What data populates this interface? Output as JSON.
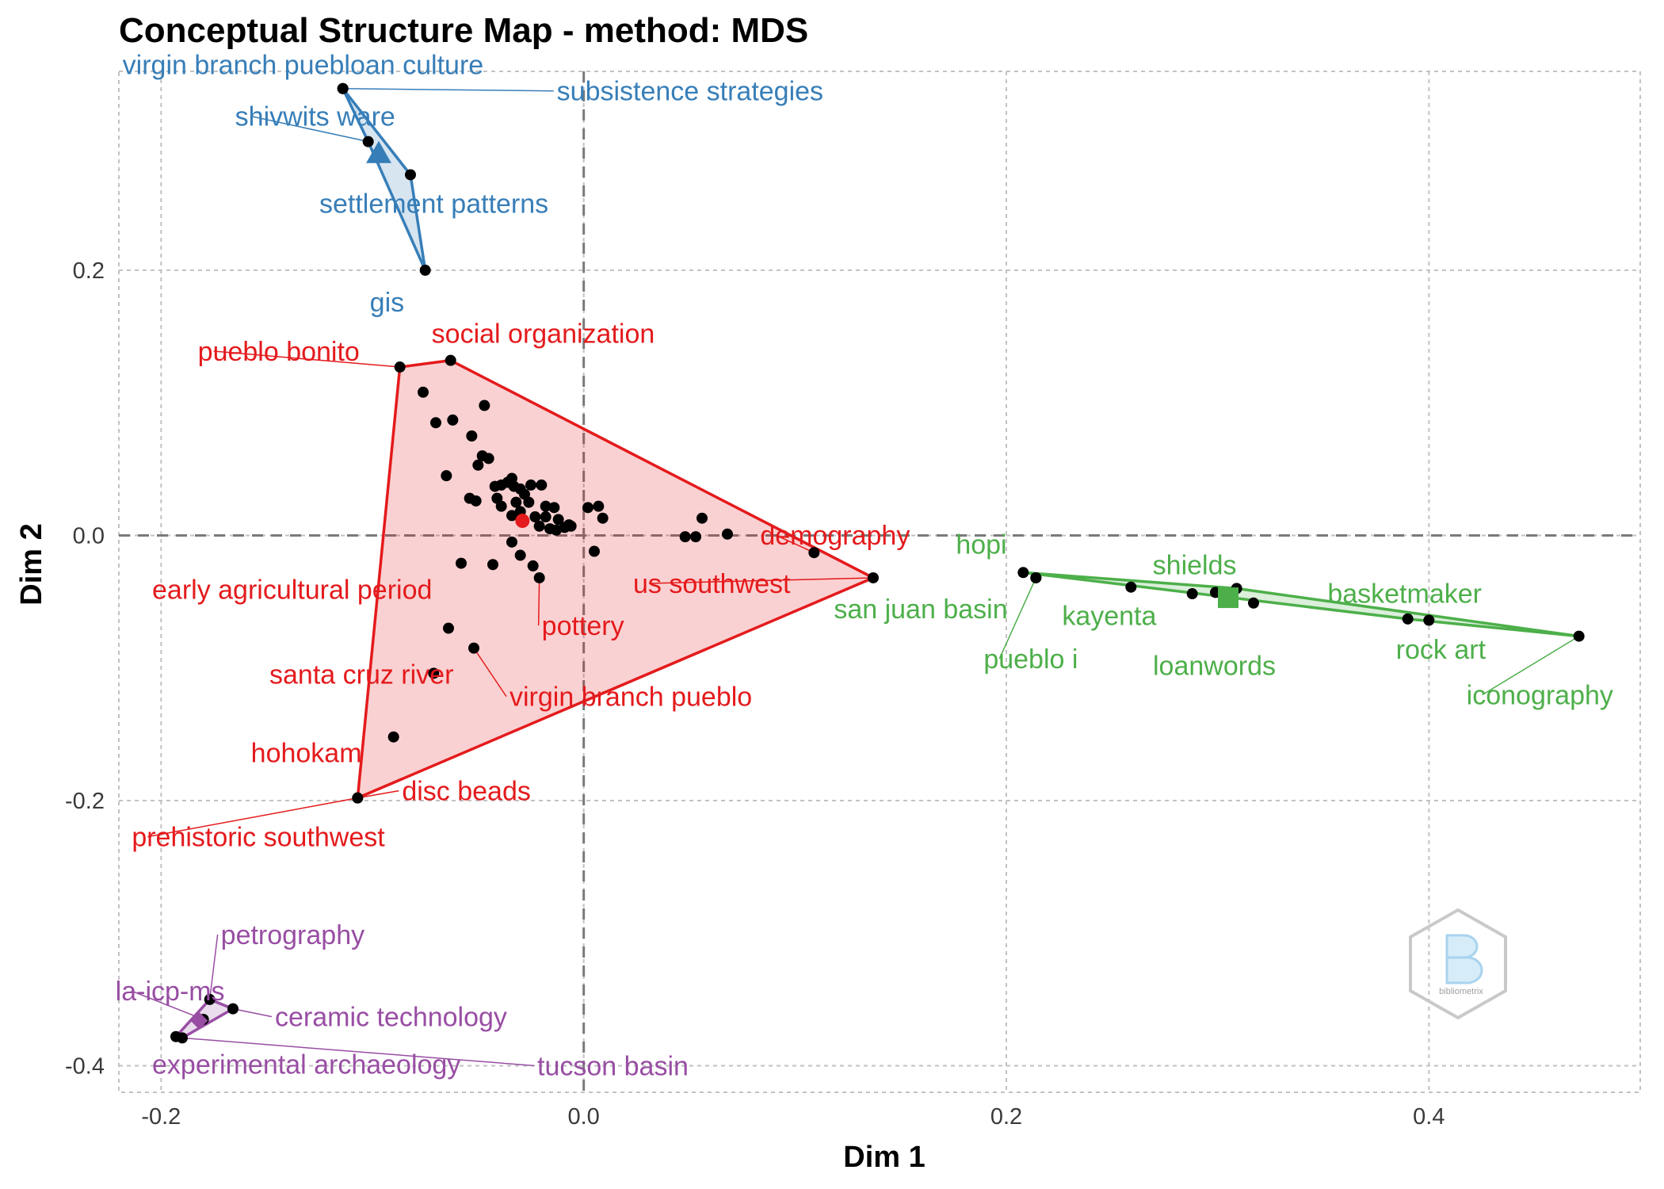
{
  "chart_data": {
    "type": "scatter",
    "title": "Conceptual Structure Map - method: MDS",
    "xlabel": "Dim 1",
    "ylabel": "Dim 2",
    "xlim": [
      -0.22,
      0.5
    ],
    "ylim": [
      -0.42,
      0.35
    ],
    "x_ticks": [
      -0.2,
      0.0,
      0.2,
      0.4
    ],
    "y_ticks": [
      0.2,
      0.0,
      -0.2,
      -0.4
    ],
    "x_tick_labels": [
      "-0.2",
      "0.0",
      "0.2",
      "0.4"
    ],
    "y_tick_labels": [
      "0.2",
      "0.0",
      "-0.2",
      "-0.4"
    ],
    "grid": true,
    "logo": "bibliometrix",
    "clusters": [
      {
        "color": "#377EB8",
        "fill": "rgba(55,126,184,0.2)",
        "centroid": [
          -0.097,
          0.288
        ],
        "centroid_shape": "triangle",
        "hull": [
          [
            -0.114,
            0.337
          ],
          [
            -0.082,
            0.272
          ],
          [
            -0.075,
            0.2
          ],
          [
            -0.102,
            0.297
          ]
        ],
        "points": [
          {
            "label": "virgin branch puebloan culture",
            "x": -0.114,
            "y": 0.337
          },
          {
            "label": "subsistence strategies",
            "x": -0.114,
            "y": 0.337
          },
          {
            "label": "shivwits ware",
            "x": -0.102,
            "y": 0.297
          },
          {
            "label": "settlement patterns",
            "x": -0.082,
            "y": 0.272
          },
          {
            "label": "gis",
            "x": -0.075,
            "y": 0.2
          }
        ]
      },
      {
        "color": "#E41A1C",
        "fill": "rgba(228,26,28,0.2)",
        "centroid": [
          -0.029,
          0.011
        ],
        "centroid_shape": "circle",
        "hull": [
          [
            -0.087,
            0.127
          ],
          [
            -0.063,
            0.132
          ],
          [
            0.137,
            -0.032
          ],
          [
            -0.107,
            -0.198
          ]
        ],
        "points": [
          {
            "label": "pueblo bonito",
            "x": -0.087,
            "y": 0.127
          },
          {
            "label": "social organization",
            "x": -0.063,
            "y": 0.132
          },
          {
            "label": "demography",
            "x": 0.109,
            "y": -0.013
          },
          {
            "label": "us southwest",
            "x": 0.137,
            "y": -0.032
          },
          {
            "label": "early agricultural period",
            "x": -0.043,
            "y": -0.022
          },
          {
            "label": "pottery",
            "x": -0.021,
            "y": -0.032
          },
          {
            "label": "virgin branch pueblo",
            "x": -0.052,
            "y": -0.085
          },
          {
            "label": "santa cruz river",
            "x": -0.064,
            "y": -0.07
          },
          {
            "label": "hohokam",
            "x": -0.09,
            "y": -0.152
          },
          {
            "label": "disc beads",
            "x": -0.107,
            "y": -0.198
          },
          {
            "label": "prehistoric southwest",
            "x": -0.107,
            "y": -0.198
          }
        ],
        "extra_points": [
          [
            -0.076,
            0.108
          ],
          [
            -0.07,
            0.085
          ],
          [
            -0.062,
            0.087
          ],
          [
            -0.047,
            0.098
          ],
          [
            -0.053,
            0.075
          ],
          [
            -0.065,
            0.045
          ],
          [
            -0.048,
            0.06
          ],
          [
            -0.05,
            0.053
          ],
          [
            -0.045,
            0.058
          ],
          [
            -0.042,
            0.037
          ],
          [
            -0.039,
            0.038
          ],
          [
            -0.036,
            0.04
          ],
          [
            -0.034,
            0.043
          ],
          [
            -0.033,
            0.037
          ],
          [
            -0.03,
            0.035
          ],
          [
            -0.025,
            0.038
          ],
          [
            -0.02,
            0.038
          ],
          [
            -0.028,
            0.031
          ],
          [
            -0.041,
            0.028
          ],
          [
            -0.039,
            0.022
          ],
          [
            -0.032,
            0.025
          ],
          [
            -0.026,
            0.025
          ],
          [
            -0.018,
            0.022
          ],
          [
            -0.014,
            0.021
          ],
          [
            -0.034,
            0.015
          ],
          [
            -0.03,
            0.018
          ],
          [
            -0.023,
            0.014
          ],
          [
            -0.018,
            0.014
          ],
          [
            -0.012,
            0.012
          ],
          [
            -0.007,
            0.008
          ],
          [
            -0.021,
            0.007
          ],
          [
            -0.016,
            0.005
          ],
          [
            -0.009,
            0.006
          ],
          [
            -0.006,
            0.007
          ],
          [
            -0.013,
            0.004
          ],
          [
            -0.051,
            0.026
          ],
          [
            -0.054,
            0.028
          ],
          [
            0.002,
            0.021
          ],
          [
            0.007,
            0.022
          ],
          [
            0.009,
            0.013
          ],
          [
            -0.034,
            -0.005
          ],
          [
            -0.03,
            -0.015
          ],
          [
            0.005,
            -0.012
          ],
          [
            0.048,
            -0.001
          ],
          [
            0.053,
            -0.001
          ],
          [
            0.056,
            0.013
          ],
          [
            0.068,
            0.001
          ],
          [
            -0.058,
            -0.021
          ],
          [
            -0.024,
            -0.023
          ],
          [
            -0.071,
            -0.104
          ]
        ]
      },
      {
        "color": "#4DAF4A",
        "fill": "rgba(77,175,74,0.2)",
        "centroid": [
          0.305,
          -0.047
        ],
        "centroid_shape": "square",
        "hull": [
          [
            0.208,
            -0.028
          ],
          [
            0.309,
            -0.04
          ],
          [
            0.471,
            -0.076
          ],
          [
            0.39,
            -0.063
          ]
        ],
        "points": [
          {
            "label": "hopi",
            "x": 0.208,
            "y": -0.028
          },
          {
            "label": "pueblo i",
            "x": 0.214,
            "y": -0.032
          },
          {
            "label": "san juan basin",
            "x": 0.214,
            "y": -0.032
          },
          {
            "label": "kayenta",
            "x": 0.259,
            "y": -0.039
          },
          {
            "label": "shields",
            "x": 0.309,
            "y": -0.04
          },
          {
            "label": "loanwords",
            "x": 0.299,
            "y": -0.043
          },
          {
            "label": "basketmaker",
            "x": 0.4,
            "y": -0.064
          },
          {
            "label": "rock art",
            "x": 0.39,
            "y": -0.063
          },
          {
            "label": "iconography",
            "x": 0.471,
            "y": -0.076
          }
        ],
        "extra_points": [
          [
            0.288,
            -0.044
          ],
          [
            0.317,
            -0.051
          ]
        ]
      },
      {
        "color": "#984EA3",
        "fill": "rgba(152,78,163,0.2)",
        "centroid": [
          -0.182,
          -0.366
        ],
        "centroid_shape": "diamond",
        "hull": [
          [
            -0.177,
            -0.35
          ],
          [
            -0.166,
            -0.357
          ],
          [
            -0.19,
            -0.379
          ],
          [
            -0.193,
            -0.378
          ]
        ],
        "points": [
          {
            "label": "petrography",
            "x": -0.177,
            "y": -0.35
          },
          {
            "label": "la-icp-ms",
            "x": -0.18,
            "y": -0.365
          },
          {
            "label": "ceramic technology",
            "x": -0.166,
            "y": -0.357
          },
          {
            "label": "experimental archaeology",
            "x": -0.193,
            "y": -0.378
          },
          {
            "label": "tucson basin",
            "x": -0.19,
            "y": -0.379
          }
        ]
      }
    ]
  }
}
